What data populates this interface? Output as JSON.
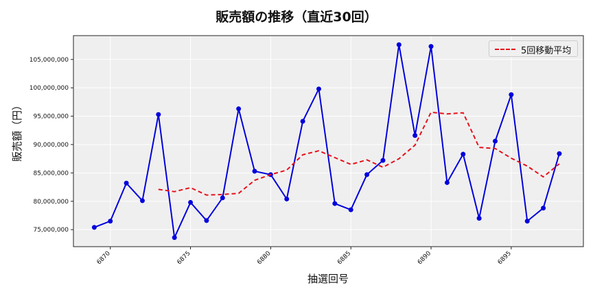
{
  "chart_data": {
    "type": "line",
    "title": "販売額の推移（直近30回）",
    "xlabel": "抽選回号",
    "ylabel": "販売額（円）",
    "x": [
      6869,
      6870,
      6871,
      6872,
      6873,
      6874,
      6875,
      6876,
      6877,
      6878,
      6879,
      6880,
      6881,
      6882,
      6883,
      6884,
      6885,
      6886,
      6887,
      6888,
      6889,
      6890,
      6891,
      6892,
      6893,
      6894,
      6895,
      6896,
      6897,
      6898
    ],
    "series": [
      {
        "name": "販売額",
        "color": "#0000dd",
        "style": "solid-with-markers",
        "values": [
          75400000,
          76500000,
          83200000,
          80100000,
          95300000,
          73600000,
          79800000,
          76600000,
          80600000,
          96300000,
          85300000,
          84700000,
          80400000,
          94100000,
          99800000,
          79600000,
          78500000,
          84700000,
          87200000,
          107600000,
          91600000,
          107300000,
          83300000,
          88300000,
          77000000,
          90600000,
          98800000,
          76500000,
          78800000,
          88400000
        ]
      },
      {
        "name": "5回移動平均",
        "color": "#e8101a",
        "style": "dashed",
        "values": [
          null,
          null,
          null,
          null,
          82100000,
          81700000,
          82400000,
          81100000,
          81200000,
          81400000,
          83700000,
          84700000,
          85500000,
          88200000,
          88900000,
          87700000,
          86500000,
          87300000,
          86000000,
          87500000,
          89900000,
          95700000,
          95400000,
          95600000,
          89500000,
          89300000,
          87600000,
          86200000,
          84300000,
          86600000
        ]
      }
    ],
    "xticks": [
      6870,
      6875,
      6880,
      6885,
      6890,
      6895
    ],
    "xtick_labels": [
      "6870",
      "6875",
      "6880",
      "6885",
      "6890",
      "6895"
    ],
    "yticks": [
      75000000,
      80000000,
      85000000,
      90000000,
      95000000,
      100000000,
      105000000
    ],
    "ytick_labels": [
      "75,000,000",
      "80,000,000",
      "85,000,000",
      "90,000,000",
      "95,000,000",
      "100,000,000",
      "105,000,000"
    ],
    "xlim": [
      6867.7,
      6899.5
    ],
    "ylim": [
      72000000,
      109200000
    ],
    "grid": true,
    "legend_position": "upper right"
  },
  "legend": {
    "label": "5回移動平均"
  }
}
